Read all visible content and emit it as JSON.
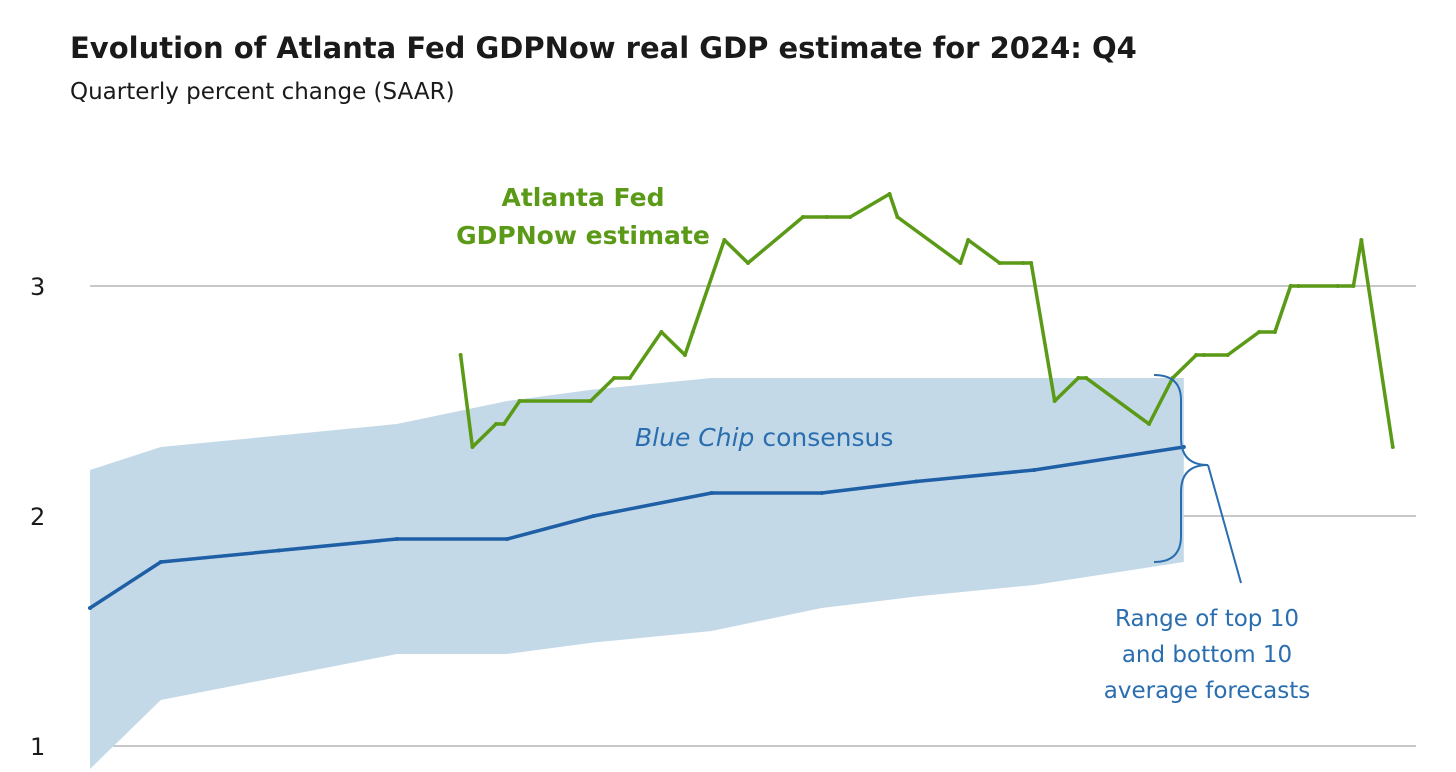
{
  "chart_data": {
    "type": "line",
    "title": "Evolution of Atlanta Fed GDPNow real GDP estimate for 2024: Q4",
    "subtitle": "Quarterly percent change (SAAR)",
    "ylim": [
      1,
      3.7
    ],
    "y_ticks": [
      1,
      2,
      3
    ],
    "grid": true,
    "colors": {
      "gdpnow": "#5a9a16",
      "consensus": "#1f5fa6",
      "band": "#c4d9e8",
      "annotation": "#2a6eb0",
      "grid": "#b5b5b5"
    },
    "labels": {
      "gdpnow_line1": "Atlanta Fed",
      "gdpnow_line2": "GDPNow estimate",
      "consensus_italic": "Blue Chip",
      "consensus_rest": " consensus",
      "range_line1": "Range of top 10",
      "range_line2": "and bottom 10",
      "range_line3": "average forecasts"
    },
    "series": [
      {
        "key": "gdpnow",
        "x": [
          0.2795,
          0.2884,
          0.3062,
          0.3122,
          0.324,
          0.3775,
          0.3953,
          0.4071,
          0.4309,
          0.4487,
          0.4546,
          0.4784,
          0.4962,
          0.5377,
          0.5555,
          0.5733,
          0.603,
          0.6089,
          0.6564,
          0.6623,
          0.686,
          0.7038,
          0.7098,
          0.7275,
          0.7453,
          0.7513,
          0.7987,
          0.8165,
          0.8343,
          0.8402,
          0.858,
          0.8817,
          0.8936,
          0.9054,
          0.9114,
          0.941,
          0.9528,
          0.9588,
          0.9825
        ],
        "y": [
          2.7,
          2.3,
          2.4,
          2.4,
          2.5,
          2.5,
          2.6,
          2.6,
          2.8,
          2.7,
          2.8,
          3.2,
          3.1,
          3.3,
          3.3,
          3.3,
          3.4,
          3.3,
          3.1,
          3.2,
          3.1,
          3.1,
          3.1,
          2.5,
          2.6,
          2.6,
          2.4,
          2.6,
          2.7,
          2.7,
          2.7,
          2.8,
          2.8,
          3.0,
          3.0,
          3.0,
          3.0,
          3.2,
          2.3
        ]
      },
      {
        "key": "consensus",
        "x": [
          0.0,
          0.0534,
          0.1424,
          0.2314,
          0.3146,
          0.3798,
          0.4688,
          0.5519,
          0.6231,
          0.7121,
          0.8249
        ],
        "y": [
          1.6,
          1.8,
          1.85,
          1.9,
          1.9,
          2.0,
          2.1,
          2.1,
          2.15,
          2.2,
          2.3
        ]
      },
      {
        "key": "band_upper",
        "x": [
          0.0,
          0.0534,
          0.1424,
          0.2314,
          0.3146,
          0.3798,
          0.4688,
          0.5519,
          0.6231,
          0.7121,
          0.8249
        ],
        "y": [
          2.2,
          2.3,
          2.35,
          2.4,
          2.5,
          2.55,
          2.6,
          2.6,
          2.6,
          2.6,
          2.6
        ]
      },
      {
        "key": "band_lower",
        "x": [
          0.0,
          0.0534,
          0.1424,
          0.2314,
          0.3146,
          0.3798,
          0.4688,
          0.5519,
          0.6231,
          0.7121,
          0.8249
        ],
        "y": [
          0.9,
          1.2,
          1.3,
          1.4,
          1.4,
          1.45,
          1.5,
          1.6,
          1.65,
          1.7,
          1.8
        ]
      }
    ]
  }
}
